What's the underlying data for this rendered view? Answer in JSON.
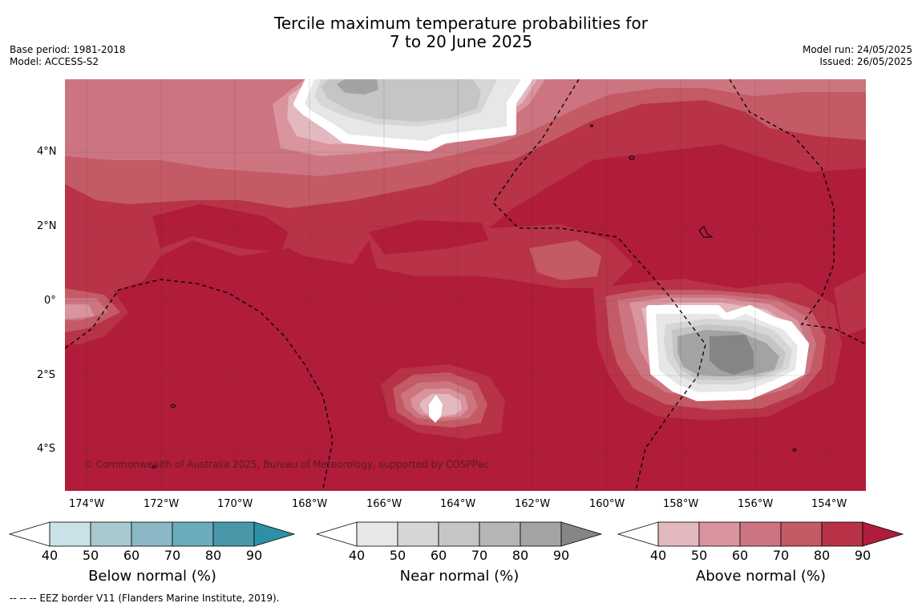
{
  "title": {
    "line1": "Tercile maximum temperature probabilities for",
    "line2": "7 to 20 June 2025"
  },
  "meta_left": {
    "base_period": "Base period: 1981-2018",
    "model": "Model: ACCESS-S2"
  },
  "meta_right": {
    "model_run": "Model run: 24/05/2025",
    "issued": "Issued: 26/05/2025"
  },
  "axes": {
    "lon_labels": [
      "174°W",
      "172°W",
      "170°W",
      "168°W",
      "166°W",
      "164°W",
      "162°W",
      "160°W",
      "158°W",
      "156°W",
      "154°W"
    ],
    "lat_labels": [
      "4°N",
      "2°N",
      "0°",
      "2°S",
      "4°S"
    ]
  },
  "copyright": "© Commonwealth of Australia 2025, Bureau of Meteorology, supported by COSPPac",
  "colorbars": [
    {
      "label": "Below normal (%)",
      "ticks": [
        "40",
        "50",
        "60",
        "70",
        "80",
        "90"
      ],
      "colors": [
        "#ffffff",
        "#c8e2e8",
        "#a7c8ce",
        "#8bb8c5",
        "#6aacbc",
        "#4898aa",
        "#2f8fa4"
      ]
    },
    {
      "label": "Near normal (%)",
      "ticks": [
        "40",
        "50",
        "60",
        "70",
        "80",
        "90"
      ],
      "colors": [
        "#ffffff",
        "#e7e7e7",
        "#d6d6d6",
        "#c5c5c5",
        "#b5b5b5",
        "#a3a3a3",
        "#858585"
      ]
    },
    {
      "label": "Above normal (%)",
      "ticks": [
        "40",
        "50",
        "60",
        "70",
        "80",
        "90"
      ],
      "colors": [
        "#ffffff",
        "#e3b8be",
        "#d9949d",
        "#cc7580",
        "#c35a66",
        "#b83248",
        "#b01c3a"
      ]
    }
  ],
  "eez_note": "--  --  -- EEZ border V11 (Flanders Marine Institute, 2019)."
}
